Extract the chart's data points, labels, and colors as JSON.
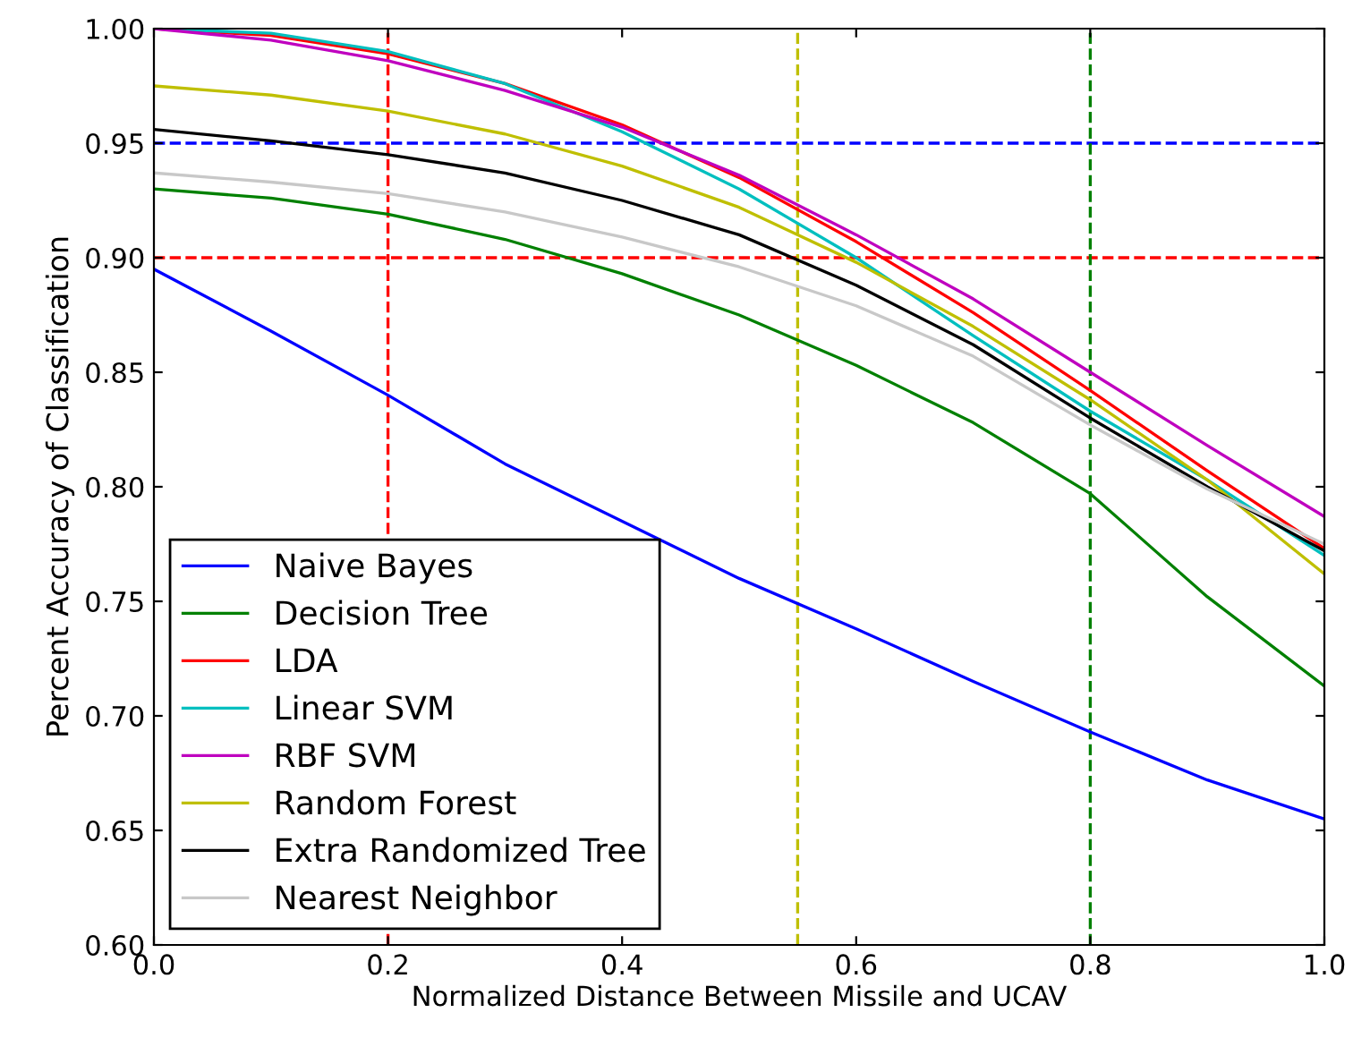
{
  "chart_data": {
    "type": "line",
    "xlabel": "Normalized Distance Between Missile and UCAV",
    "ylabel": "Percent Accuracy of Classification",
    "x": [
      0,
      0.1,
      0.2,
      0.3,
      0.4,
      0.5,
      0.6,
      0.7,
      0.8,
      0.9,
      1.0
    ],
    "series": [
      {
        "name": "Naive Bayes",
        "color": "#0000ff",
        "values": [
          0.895,
          0.868,
          0.84,
          0.81,
          0.785,
          0.76,
          0.738,
          0.715,
          0.693,
          0.672,
          0.655
        ]
      },
      {
        "name": "Decision Tree",
        "color": "#008000",
        "values": [
          0.93,
          0.926,
          0.919,
          0.908,
          0.893,
          0.875,
          0.853,
          0.828,
          0.797,
          0.752,
          0.713
        ]
      },
      {
        "name": "LDA",
        "color": "#ff0000",
        "values": [
          1.0,
          0.997,
          0.989,
          0.976,
          0.958,
          0.935,
          0.907,
          0.876,
          0.842,
          0.807,
          0.773
        ]
      },
      {
        "name": "Linear SVM",
        "color": "#00bfbf",
        "values": [
          1.0,
          0.998,
          0.99,
          0.976,
          0.955,
          0.93,
          0.9,
          0.866,
          0.833,
          0.803,
          0.77
        ]
      },
      {
        "name": "RBF SVM",
        "color": "#bf00bf",
        "values": [
          1.0,
          0.995,
          0.986,
          0.973,
          0.957,
          0.936,
          0.91,
          0.882,
          0.85,
          0.818,
          0.787
        ]
      },
      {
        "name": "Random Forest",
        "color": "#bfbf00",
        "values": [
          0.975,
          0.971,
          0.964,
          0.954,
          0.94,
          0.922,
          0.898,
          0.87,
          0.838,
          0.803,
          0.762
        ]
      },
      {
        "name": "Extra Randomized Tree",
        "color": "#000000",
        "values": [
          0.956,
          0.951,
          0.945,
          0.937,
          0.925,
          0.91,
          0.888,
          0.862,
          0.83,
          0.8,
          0.772
        ]
      },
      {
        "name": "Nearest Neighbor",
        "color": "#c8c8c8",
        "values": [
          0.937,
          0.933,
          0.928,
          0.92,
          0.909,
          0.896,
          0.879,
          0.857,
          0.827,
          0.799,
          0.775
        ]
      }
    ],
    "ref_lines": [
      {
        "axis": "y",
        "value": 0.95,
        "color": "#0000ff",
        "line_style": "dashed"
      },
      {
        "axis": "y",
        "value": 0.9,
        "color": "#ff0000",
        "line_style": "dashed"
      },
      {
        "axis": "x",
        "value": 0.2,
        "color": "#ff0000",
        "line_style": "dashed"
      },
      {
        "axis": "x",
        "value": 0.55,
        "color": "#bfbf00",
        "line_style": "dashed"
      },
      {
        "axis": "x",
        "value": 0.8,
        "color": "#008000",
        "line_style": "dashed"
      }
    ],
    "xlim": [
      0.0,
      1.0
    ],
    "xticks": [
      {
        "value": 0,
        "label": "0.0"
      },
      0.2,
      0.4,
      0.6,
      0.8,
      {
        "value": 1,
        "label": "1.0"
      }
    ],
    "ylim": [
      0.6,
      1.0
    ],
    "yticks": [
      {
        "value": 0.6,
        "label": "0.60"
      },
      {
        "value": 0.65,
        "label": "0.65"
      },
      {
        "value": 0.7,
        "label": "0.70"
      },
      {
        "value": 0.75,
        "label": "0.75"
      },
      {
        "value": 0.8,
        "label": "0.80"
      },
      {
        "value": 0.85,
        "label": "0.85"
      },
      {
        "value": 0.9,
        "label": "0.90"
      },
      {
        "value": 0.95,
        "label": "0.95"
      },
      {
        "value": 1.0,
        "label": "1.00"
      }
    ],
    "grid": false,
    "legend": "bottom left",
    "line_style": "solid",
    "marker": "none"
  }
}
